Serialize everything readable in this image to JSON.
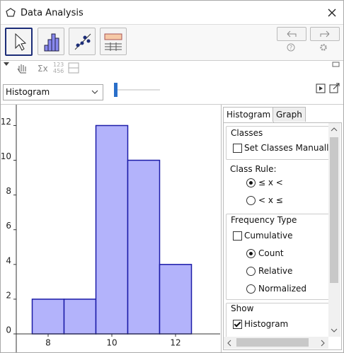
{
  "window": {
    "title": "Data Analysis"
  },
  "toolbar": {
    "sum_label": "Σx",
    "number_label_top": "123",
    "number_label_bottom": "456"
  },
  "plot_selector": "Histogram",
  "tabs": [
    {
      "label": "Histogram",
      "active": true
    },
    {
      "label": "Graph",
      "active": false
    }
  ],
  "options": {
    "classes": {
      "heading": "Classes",
      "set_manually": {
        "label": "Set Classes Manually",
        "checked": false
      }
    },
    "class_rule": {
      "heading": "Class Rule:",
      "choices": [
        {
          "label": "≤ x <",
          "selected": true
        },
        {
          "label": "< x ≤",
          "selected": false
        }
      ]
    },
    "frequency_type": {
      "heading": "Frequency Type",
      "cumulative": {
        "label": "Cumulative",
        "checked": false
      },
      "choices": [
        {
          "label": "Count",
          "selected": true
        },
        {
          "label": "Relative",
          "selected": false
        },
        {
          "label": "Normalized",
          "selected": false
        }
      ]
    },
    "show": {
      "heading": "Show",
      "histogram": {
        "label": "Histogram",
        "checked": true
      }
    }
  },
  "chart_data": {
    "type": "histogram",
    "bins": [
      7.5,
      8.5,
      9.5,
      10.5,
      11.5,
      12.5
    ],
    "values": [
      2,
      2,
      12,
      10,
      4
    ],
    "color": "#b3b3fb",
    "edge_color": "#1c1ca8",
    "xlim": [
      7,
      13.4
    ],
    "ylim": [
      0,
      13.2
    ],
    "xticks": [
      8,
      10,
      12
    ],
    "yticks": [
      0,
      2,
      4,
      6,
      8,
      10,
      12
    ],
    "grid": false
  }
}
